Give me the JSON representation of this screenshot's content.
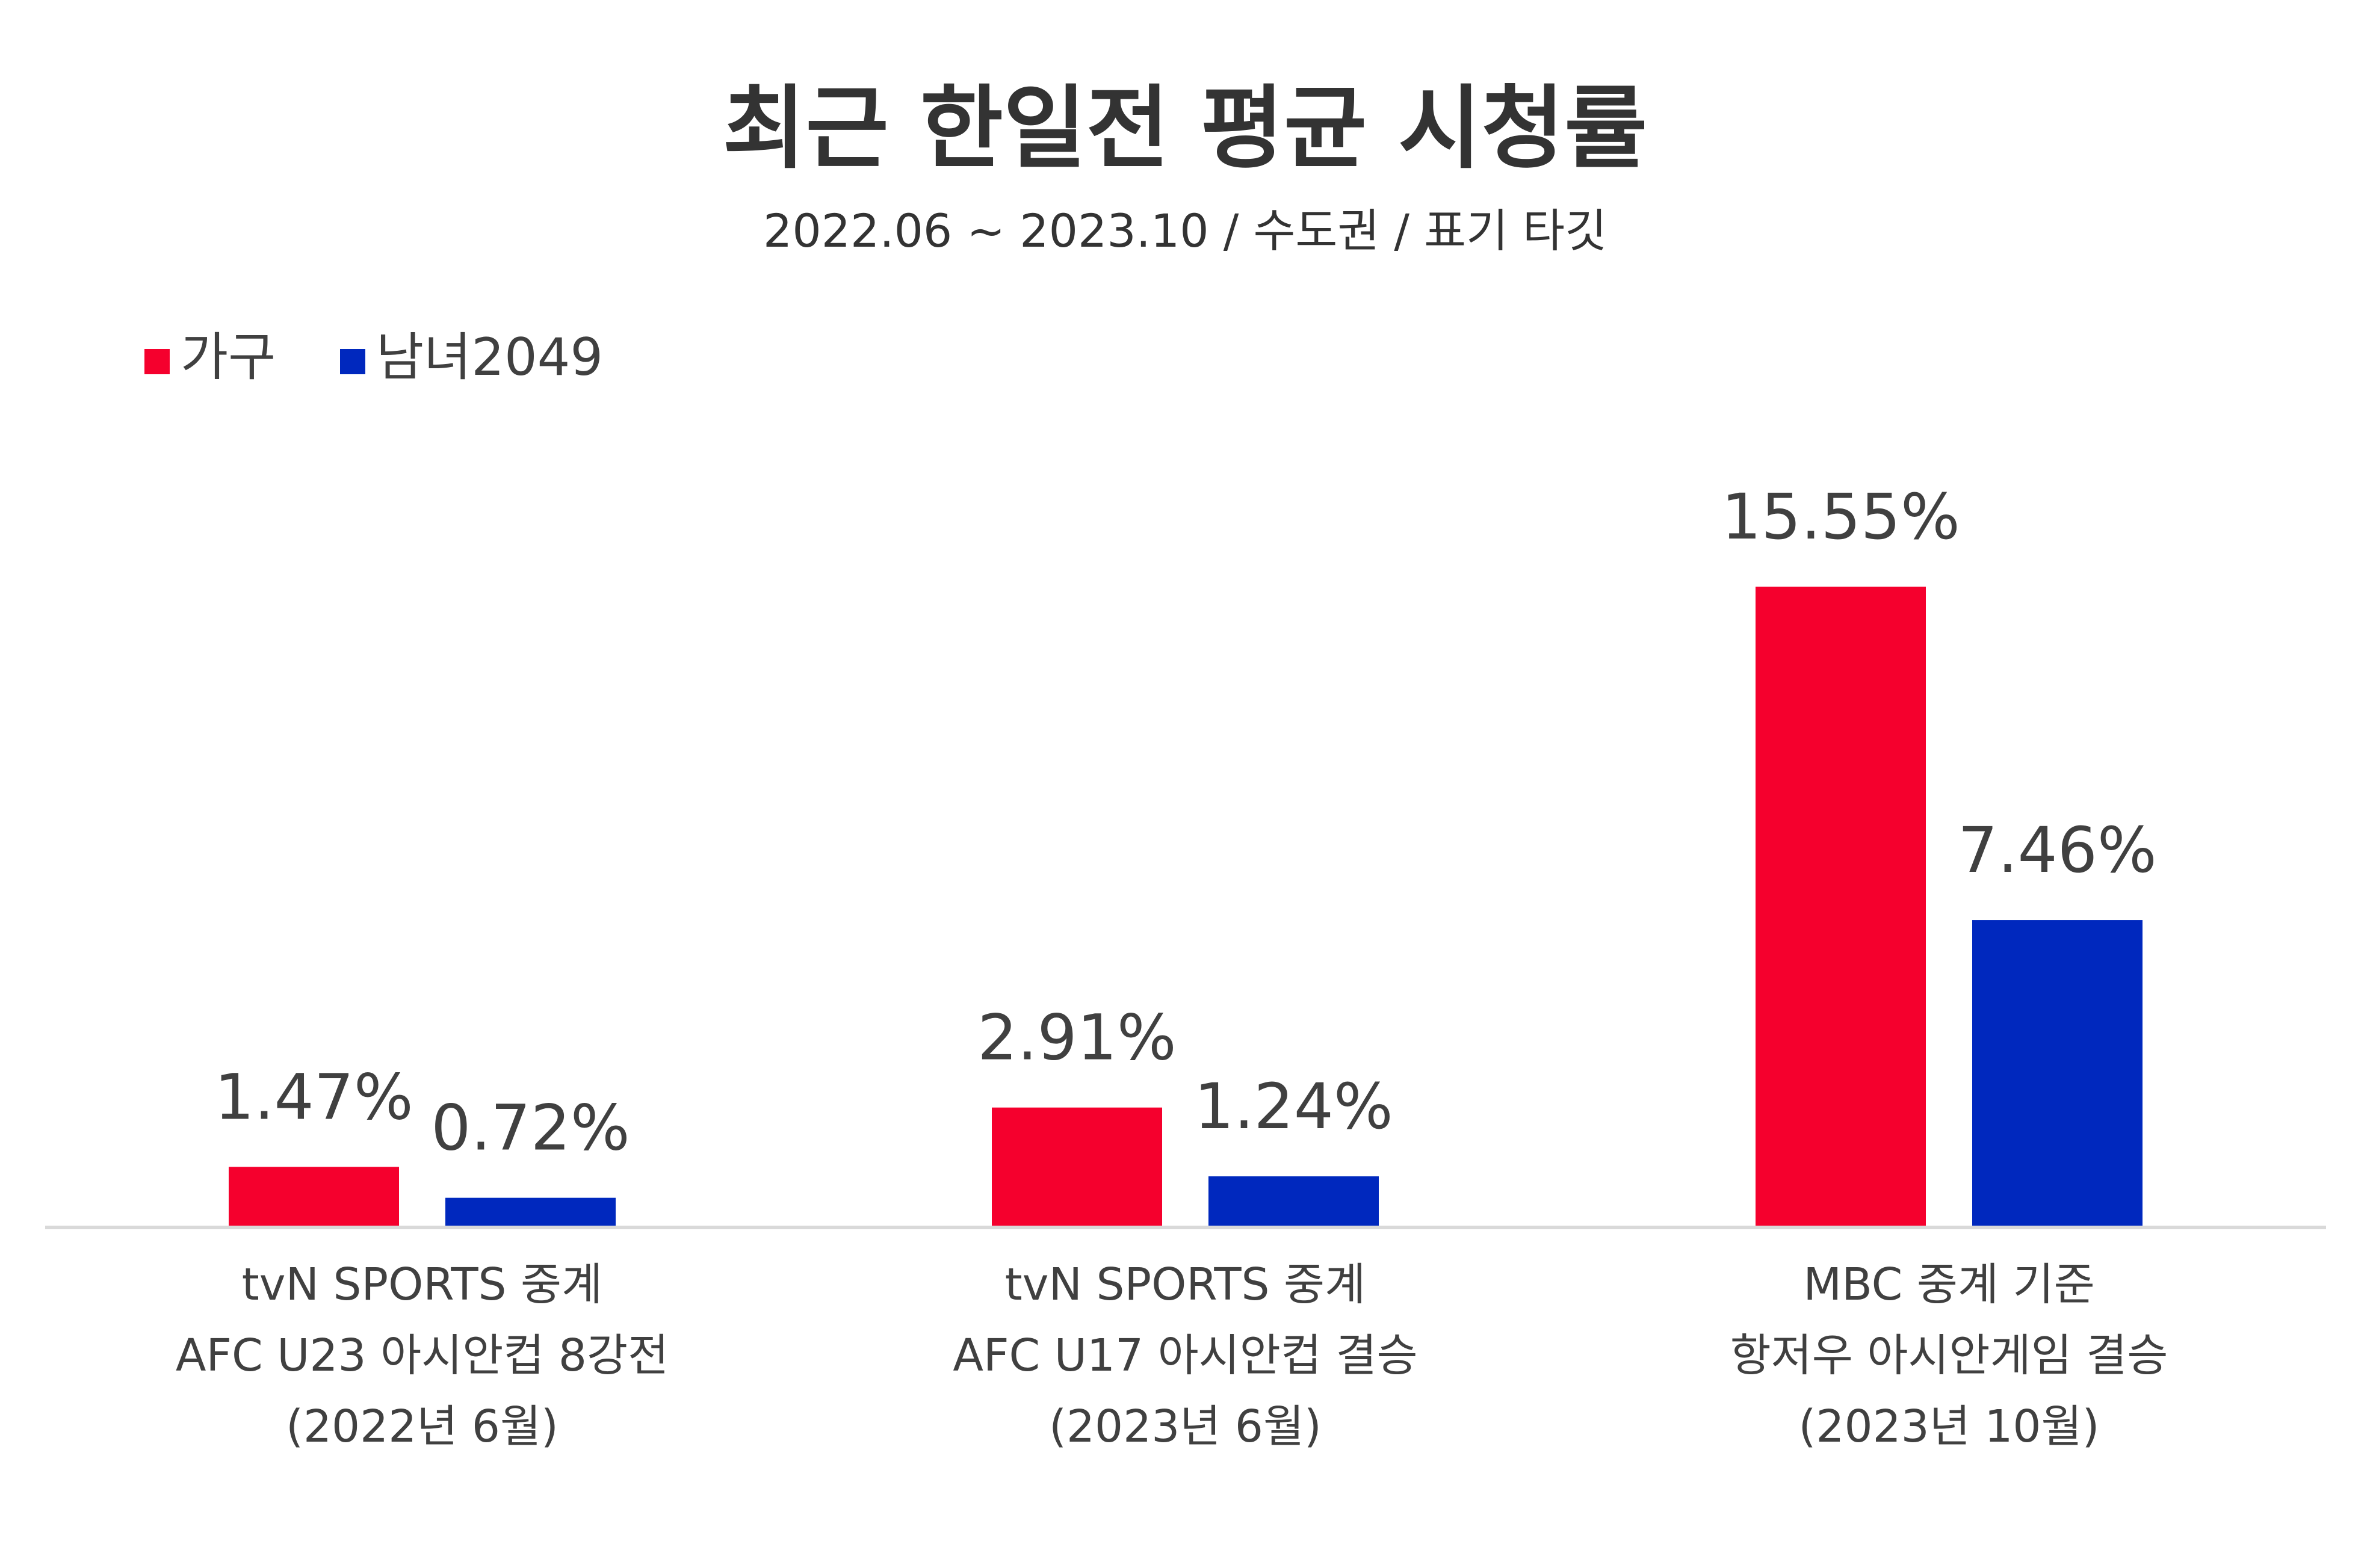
{
  "chart_data": {
    "type": "bar",
    "title": "최근 한일전 평균 시청률",
    "subtitle": "2022.06 ~ 2023.10 / 수도권 / 표기 타깃",
    "categories": [
      [
        "tvN SPORTS 중계",
        "AFC U23 아시안컵 8강전",
        "(2022년 6월)"
      ],
      [
        "tvN SPORTS 중계",
        "AFC U17 아시안컵 결승",
        "(2023년 6월)"
      ],
      [
        "MBC 중계 기준",
        "항저우 아시안게임 결승",
        "(2023년 10월)"
      ]
    ],
    "series": [
      {
        "name": "가구",
        "color": "#F5002D",
        "values": [
          1.47,
          2.91,
          15.55
        ],
        "labels": [
          "1.47%",
          "2.91%",
          "15.55%"
        ]
      },
      {
        "name": "남녀2049",
        "color": "#0028BE",
        "values": [
          0.72,
          1.24,
          7.46
        ],
        "labels": [
          "0.72%",
          "1.24%",
          "7.46%"
        ]
      }
    ],
    "legend": "top-left",
    "grid": false,
    "ylim": [
      0,
      15.55
    ],
    "axis_color": "#D9D9D9",
    "text_color": "#404040"
  }
}
